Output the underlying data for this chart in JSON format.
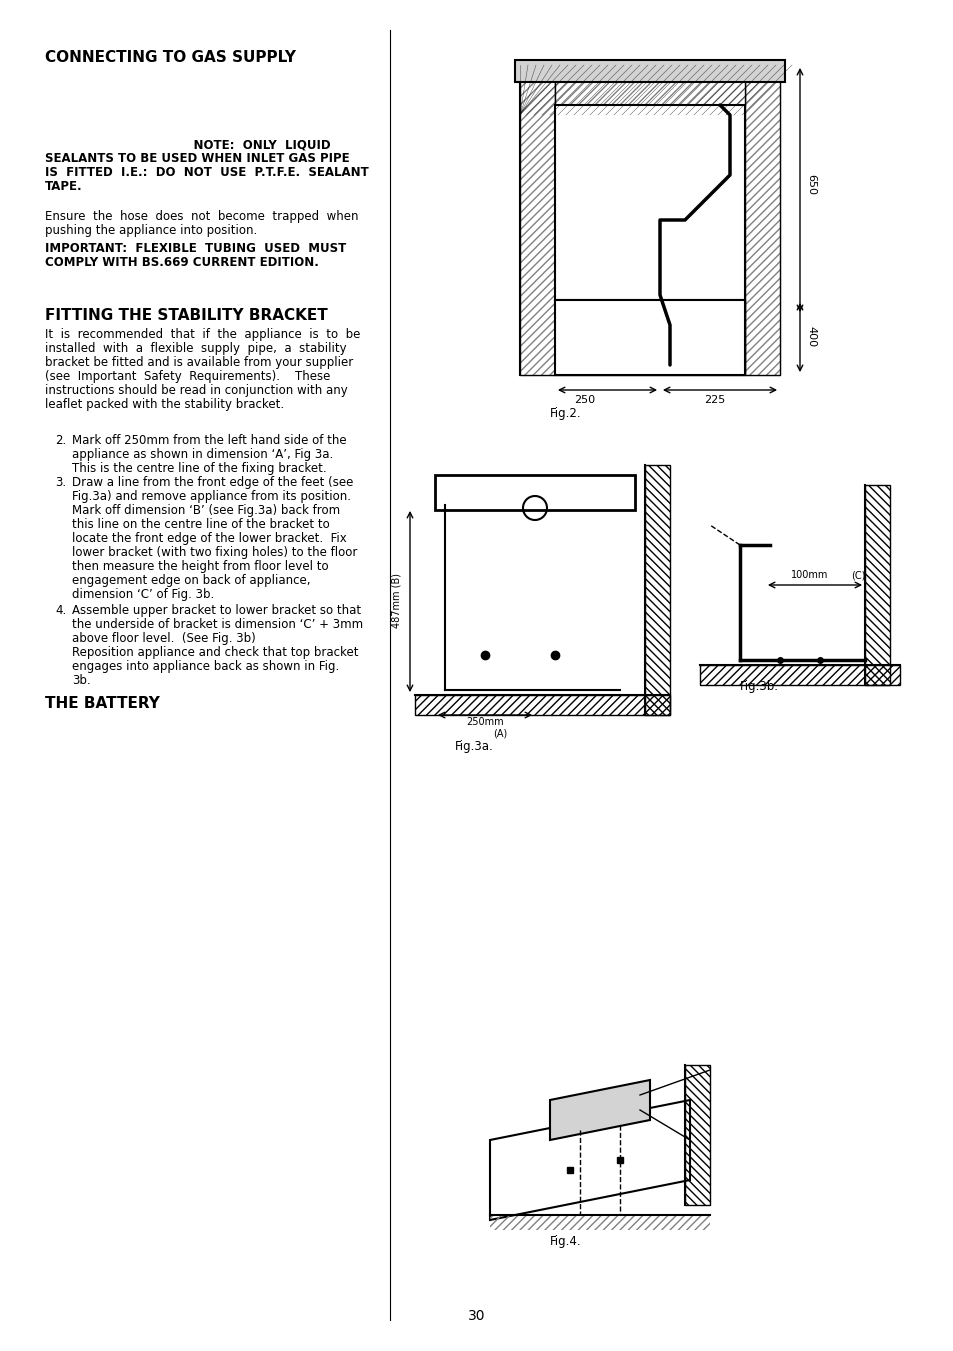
{
  "bg_color": "#ffffff",
  "text_color": "#000000",
  "page_number": "30",
  "title1": "CONNECTING TO GAS SUPPLY",
  "note_bold": "NOTE:  ONLY  LIQUID\nSEALANTS TO BE USED WHEN INLET GAS PIPE\nIS  FITTED  I.E.:  DO  NOT  USE  P.T.F.E.  SEALANT\nTAPE.",
  "para1": "Ensure  the  hose  does  not  become  trapped  when\npushing the appliance into position.",
  "important": "IMPORTANT:  FLEXIBLE  TUBING  USED  MUST\nCOMPLY WITH BS.669 CURRENT EDITION.",
  "title2": "FITTING THE STABILITY BRACKET",
  "para2": "It  is  recommended  that  if  the  appliance  is  to  be\ninstalled  with  a  flexible  supply  pipe,  a  stability\nbracket be fitted and is available from your supplier\n(see  Important  Safety  Requirements).    These\ninstructions should be read in conjunction with any\nleaflet packed with the stability bracket.",
  "item2": "Mark off 250mm from the left hand side of the\nappliance as shown in dimension ‘A’, Fig 3a.\nThis is the centre line of the fixing bracket.",
  "item3": "Draw a line from the front edge of the feet (see\nFig.3a) and remove appliance from its position.\nMark off dimension ‘B’ (see Fig.3a) back from\nthis line on the centre line of the bracket to\nlocate the front edge of the lower bracket.  Fix\nlower bracket (with two fixing holes) to the floor\nthen measure the height from floor level to\nengagement edge on back of appliance,\ndimension ‘C’ of Fig. 3b.",
  "item4": "Assemble upper bracket to lower bracket so that\nthe underside of bracket is dimension ‘C’ + 3mm\nabove floor level.  (See Fig. 3b)\nReposition appliance and check that top bracket\nengages into appliance back as shown in Fig.\n3b.",
  "title3": "THE BATTERY",
  "fig2_label": "Fig.2.",
  "fig3a_label": "Fig.3a.",
  "fig3b_label": "Fig.3b.",
  "fig4_label": "Fig.4.",
  "dim_650": "650",
  "dim_400": "400",
  "dim_250": "250",
  "dim_225": "225",
  "dim_487": "487mm (B)",
  "dim_100": "100mm",
  "dim_C": "(C)",
  "dim_A": "(A)",
  "dim_250mm": "250mm"
}
